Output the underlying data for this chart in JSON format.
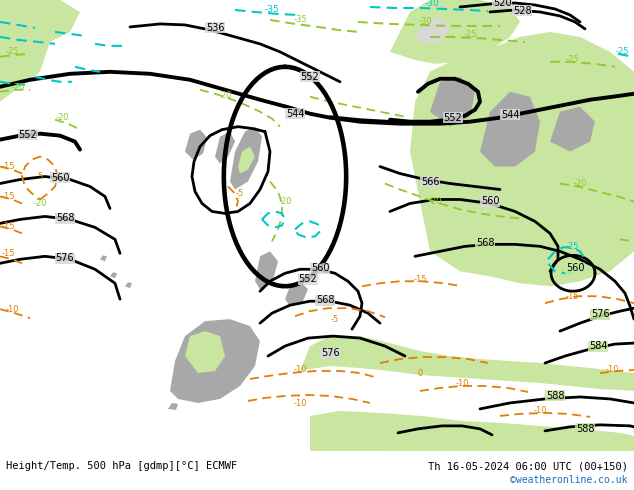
{
  "title_left": "Height/Temp. 500 hPa [gdmp][°C] ECMWF",
  "title_right": "Th 16-05-2024 06:00 UTC (00+150)",
  "credit": "©weatheronline.co.uk",
  "bg_ocean": "#d8d8d8",
  "bg_land_green": "#c8e6a0",
  "bg_land_gray": "#a8a8a8",
  "fig_width": 6.34,
  "fig_height": 4.9,
  "dpi": 100,
  "cyan": "#00c8c8",
  "orange": "#e08000",
  "yellow_green": "#90c830",
  "black": "#000000",
  "white": "#ffffff",
  "blue_credit": "#1a6ebf"
}
